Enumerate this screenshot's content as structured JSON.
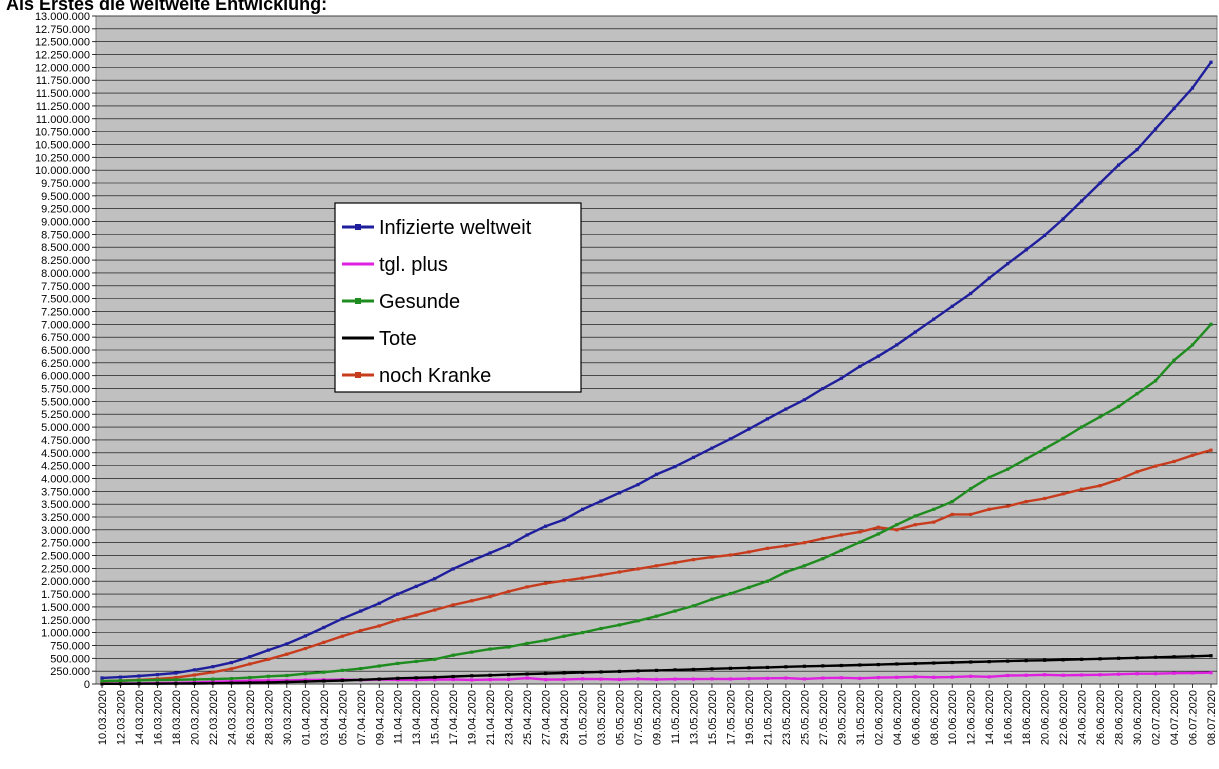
{
  "page": {
    "heading": "Als Erstes die weltweite Entwicklung:"
  },
  "chart_data": {
    "type": "line",
    "ylim": [
      0,
      13000000
    ],
    "ytick_step": 250000,
    "grid": "horizontal",
    "plot_background": "#c0c0c0",
    "legend_position": "upper-left-center",
    "x": [
      "10.03.2020",
      "12.03.2020",
      "14.03.2020",
      "16.03.2020",
      "18.03.2020",
      "20.03.2020",
      "22.03.2020",
      "24.03.2020",
      "26.03.2020",
      "28.03.2020",
      "30.03.2020",
      "01.04.2020",
      "03.04.2020",
      "05.04.2020",
      "07.04.2020",
      "09.04.2020",
      "11.04.2020",
      "13.04.2020",
      "15.04.2020",
      "17.04.2020",
      "19.04.2020",
      "21.04.2020",
      "23.04.2020",
      "25.04.2020",
      "27.04.2020",
      "29.04.2020",
      "01.05.2020",
      "03.05.2020",
      "05.05.2020",
      "07.05.2020",
      "09.05.2020",
      "11.05.2020",
      "13.05.2020",
      "15.05.2020",
      "17.05.2020",
      "19.05.2020",
      "21.05.2020",
      "23.05.2020",
      "25.05.2020",
      "27.05.2020",
      "29.05.2020",
      "31.05.2020",
      "02.06.2020",
      "04.06.2020",
      "06.06.2020",
      "08.06.2020",
      "10.06.2020",
      "12.06.2020",
      "14.06.2020",
      "16.06.2020",
      "18.06.2020",
      "20.06.2020",
      "22.06.2020",
      "24.06.2020",
      "26.06.2020",
      "28.06.2020",
      "30.06.2020",
      "02.07.2020",
      "04.07.2020",
      "06.07.2020",
      "08.07.2020"
    ],
    "series": [
      {
        "name": "Infizierte weltweit",
        "color": "#1f1f9e",
        "values": [
          118000,
          134000,
          156000,
          182000,
          214000,
          275000,
          337000,
          417000,
          530000,
          660000,
          780000,
          935000,
          1100000,
          1270000,
          1420000,
          1570000,
          1750000,
          1900000,
          2050000,
          2240000,
          2400000,
          2550000,
          2700000,
          2900000,
          3070000,
          3200000,
          3400000,
          3560000,
          3720000,
          3880000,
          4080000,
          4230000,
          4410000,
          4590000,
          4770000,
          4960000,
          5160000,
          5350000,
          5530000,
          5750000,
          5950000,
          6180000,
          6380000,
          6600000,
          6850000,
          7100000,
          7350000,
          7600000,
          7900000,
          8180000,
          8450000,
          8730000,
          9050000,
          9400000,
          9750000,
          10100000,
          10400000,
          10800000,
          11200000,
          11600000,
          12100000
        ]
      },
      {
        "name": "tgl. plus",
        "color": "#e020e0",
        "values": [
          4000,
          9000,
          12000,
          17000,
          24000,
          32000,
          42000,
          52000,
          64000,
          70000,
          68000,
          78000,
          82000,
          85000,
          78000,
          88000,
          82000,
          80000,
          85000,
          88000,
          80000,
          85000,
          90000,
          115000,
          85000,
          90000,
          100000,
          95000,
          88000,
          100000,
          90000,
          95000,
          95000,
          100000,
          98000,
          105000,
          110000,
          115000,
          100000,
          115000,
          120000,
          110000,
          125000,
          130000,
          140000,
          130000,
          135000,
          150000,
          140000,
          165000,
          170000,
          180000,
          170000,
          175000,
          180000,
          190000,
          200000,
          200000,
          210000,
          215000,
          220000
        ]
      },
      {
        "name": "Gesunde",
        "color": "#1e8c1e",
        "values": [
          60000,
          65000,
          72000,
          77000,
          82000,
          90000,
          95000,
          105000,
          125000,
          150000,
          165000,
          200000,
          230000,
          265000,
          300000,
          350000,
          400000,
          440000,
          480000,
          560000,
          620000,
          680000,
          720000,
          790000,
          850000,
          930000,
          1000000,
          1080000,
          1150000,
          1230000,
          1320000,
          1420000,
          1520000,
          1650000,
          1760000,
          1880000,
          2000000,
          2180000,
          2300000,
          2440000,
          2600000,
          2760000,
          2920000,
          3100000,
          3270000,
          3400000,
          3550000,
          3800000,
          4020000,
          4180000,
          4380000,
          4580000,
          4780000,
          5000000,
          5200000,
          5400000,
          5650000,
          5900000,
          6300000,
          6600000,
          7000000
        ]
      },
      {
        "name": "Tote",
        "color": "#000000",
        "values": [
          4000,
          4600,
          5400,
          6600,
          8000,
          10000,
          14000,
          19000,
          25000,
          31000,
          38000,
          47000,
          58000,
          69000,
          82000,
          95000,
          110000,
          120000,
          130000,
          145000,
          160000,
          170000,
          183000,
          195000,
          205000,
          215000,
          225000,
          235000,
          245000,
          256000,
          265000,
          275000,
          283000,
          295000,
          305000,
          315000,
          323000,
          335000,
          345000,
          353000,
          360000,
          370000,
          378000,
          390000,
          398000,
          408000,
          418000,
          428000,
          435000,
          445000,
          455000,
          462000,
          470000,
          480000,
          490000,
          500000,
          510000,
          520000,
          530000,
          540000,
          550000
        ]
      },
      {
        "name": "noch Kranke",
        "color": "#c83c1e",
        "values": [
          54000,
          65000,
          80000,
          100000,
          125000,
          175000,
          230000,
          295000,
          390000,
          480000,
          580000,
          690000,
          810000,
          930000,
          1040000,
          1130000,
          1250000,
          1340000,
          1440000,
          1540000,
          1620000,
          1700000,
          1800000,
          1890000,
          1960000,
          2010000,
          2060000,
          2120000,
          2180000,
          2240000,
          2300000,
          2360000,
          2420000,
          2470000,
          2510000,
          2570000,
          2640000,
          2690000,
          2750000,
          2830000,
          2900000,
          2960000,
          3050000,
          3000000,
          3100000,
          3150000,
          3300000,
          3300000,
          3400000,
          3460000,
          3550000,
          3610000,
          3700000,
          3790000,
          3860000,
          3980000,
          4130000,
          4240000,
          4330000,
          4450000,
          4550000
        ]
      }
    ]
  }
}
